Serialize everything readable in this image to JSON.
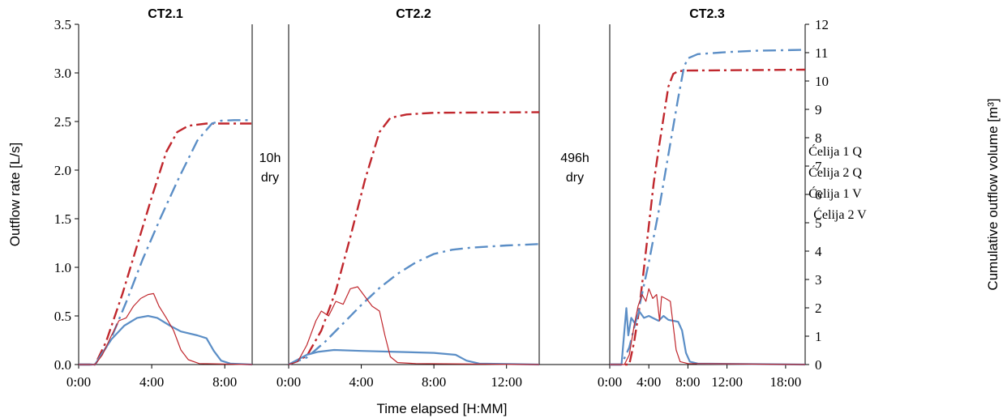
{
  "chart_data": {
    "type": "line",
    "xlabel": "Time elapsed [H:MM]",
    "ylabel": "Outflow rate [L/s]",
    "y2label": "Cumulative outflow volume [m³]",
    "ylim": [
      0,
      3.5
    ],
    "y2lim": [
      0,
      12
    ],
    "yticks": [
      "0.0",
      "0.5",
      "1.0",
      "1.5",
      "2.0",
      "2.5",
      "3.0",
      "3.5"
    ],
    "y2ticks": [
      "0",
      "1",
      "2",
      "3",
      "4",
      "5",
      "6",
      "7",
      "8",
      "9",
      "10",
      "11",
      "12"
    ],
    "grid": false,
    "legend_position": "right",
    "gaps": [
      {
        "line1": "10h",
        "line2": "dry"
      },
      {
        "line1": "496h",
        "line2": "dry"
      }
    ],
    "legend": [
      "Ćelija 1 Q",
      "Ćelija 2 Q",
      "Ćelija 1 V",
      "Ćelija 2 V"
    ],
    "colors": {
      "red": "#c0272d",
      "blue": "#5b8ec6"
    },
    "panels": [
      {
        "title": "CT2.1",
        "xmax": 9.5,
        "xticks": [
          {
            "v": 0,
            "label": "0:00"
          },
          {
            "v": 4,
            "label": "4:00"
          },
          {
            "v": 8,
            "label": "8:00"
          }
        ],
        "series": [
          {
            "key": "c1q",
            "axis": "y",
            "points": [
              [
                0,
                0
              ],
              [
                0.9,
                0
              ],
              [
                1.3,
                0.1
              ],
              [
                1.8,
                0.3
              ],
              [
                2.2,
                0.45
              ],
              [
                2.6,
                0.48
              ],
              [
                3.0,
                0.6
              ],
              [
                3.4,
                0.68
              ],
              [
                3.8,
                0.72
              ],
              [
                4.1,
                0.73
              ],
              [
                4.4,
                0.6
              ],
              [
                4.8,
                0.48
              ],
              [
                5.2,
                0.35
              ],
              [
                5.6,
                0.15
              ],
              [
                6.0,
                0.05
              ],
              [
                6.6,
                0.01
              ],
              [
                9.5,
                0
              ]
            ]
          },
          {
            "key": "c2q",
            "axis": "y",
            "points": [
              [
                0,
                0
              ],
              [
                0.9,
                0
              ],
              [
                1.3,
                0.12
              ],
              [
                1.8,
                0.26
              ],
              [
                2.5,
                0.4
              ],
              [
                3.2,
                0.48
              ],
              [
                3.8,
                0.5
              ],
              [
                4.3,
                0.48
              ],
              [
                5.0,
                0.4
              ],
              [
                5.6,
                0.34
              ],
              [
                6.5,
                0.3
              ],
              [
                7.0,
                0.27
              ],
              [
                7.4,
                0.14
              ],
              [
                7.8,
                0.04
              ],
              [
                8.3,
                0.01
              ],
              [
                9.5,
                0
              ]
            ]
          },
          {
            "key": "c1v",
            "axis": "y2",
            "points": [
              [
                0,
                0
              ],
              [
                0.9,
                0
              ],
              [
                1.5,
                0.8
              ],
              [
                2.4,
                2.5
              ],
              [
                3.2,
                4.2
              ],
              [
                4.0,
                5.9
              ],
              [
                4.8,
                7.5
              ],
              [
                5.4,
                8.2
              ],
              [
                6.0,
                8.42
              ],
              [
                7.0,
                8.5
              ],
              [
                9.5,
                8.5
              ]
            ]
          },
          {
            "key": "c2v",
            "axis": "y2",
            "points": [
              [
                0,
                0
              ],
              [
                0.9,
                0
              ],
              [
                1.7,
                0.8
              ],
              [
                2.6,
                2.2
              ],
              [
                3.5,
                3.7
              ],
              [
                4.5,
                5.2
              ],
              [
                5.5,
                6.6
              ],
              [
                6.5,
                7.9
              ],
              [
                7.3,
                8.5
              ],
              [
                7.8,
                8.6
              ],
              [
                8.5,
                8.62
              ],
              [
                9.5,
                8.62
              ]
            ]
          }
        ]
      },
      {
        "title": "CT2.2",
        "xmax": 13.8,
        "xticks": [
          {
            "v": 0,
            "label": "0:00"
          },
          {
            "v": 4,
            "label": "4:00"
          },
          {
            "v": 8,
            "label": "8:00"
          },
          {
            "v": 12,
            "label": "12:00"
          }
        ],
        "series": [
          {
            "key": "c1q",
            "axis": "y",
            "points": [
              [
                0,
                0
              ],
              [
                0.5,
                0.03
              ],
              [
                1.0,
                0.2
              ],
              [
                1.5,
                0.45
              ],
              [
                1.8,
                0.55
              ],
              [
                2.2,
                0.5
              ],
              [
                2.6,
                0.65
              ],
              [
                3.0,
                0.62
              ],
              [
                3.4,
                0.78
              ],
              [
                3.8,
                0.8
              ],
              [
                4.2,
                0.7
              ],
              [
                4.6,
                0.6
              ],
              [
                5.0,
                0.55
              ],
              [
                5.3,
                0.3
              ],
              [
                5.6,
                0.08
              ],
              [
                6.0,
                0.02
              ],
              [
                7.0,
                0.01
              ],
              [
                13.8,
                0
              ]
            ]
          },
          {
            "key": "c2q",
            "axis": "y",
            "points": [
              [
                0,
                0
              ],
              [
                0.5,
                0.05
              ],
              [
                1.0,
                0.1
              ],
              [
                1.6,
                0.13
              ],
              [
                2.5,
                0.15
              ],
              [
                4.0,
                0.14
              ],
              [
                6.0,
                0.13
              ],
              [
                8.0,
                0.12
              ],
              [
                9.2,
                0.1
              ],
              [
                9.8,
                0.04
              ],
              [
                10.5,
                0.01
              ],
              [
                13.8,
                0
              ]
            ]
          },
          {
            "key": "c1v",
            "axis": "y2",
            "points": [
              [
                0,
                0
              ],
              [
                1.0,
                0.3
              ],
              [
                1.8,
                1.2
              ],
              [
                2.6,
                2.6
              ],
              [
                3.4,
                4.5
              ],
              [
                4.2,
                6.5
              ],
              [
                5.0,
                8.2
              ],
              [
                5.6,
                8.7
              ],
              [
                6.5,
                8.82
              ],
              [
                8.0,
                8.88
              ],
              [
                13.8,
                8.9
              ]
            ]
          },
          {
            "key": "c2v",
            "axis": "y2",
            "points": [
              [
                0,
                0
              ],
              [
                1.0,
                0.25
              ],
              [
                2.0,
                0.8
              ],
              [
                3.0,
                1.45
              ],
              [
                4.0,
                2.1
              ],
              [
                5.0,
                2.7
              ],
              [
                6.0,
                3.2
              ],
              [
                7.0,
                3.6
              ],
              [
                8.0,
                3.9
              ],
              [
                9.0,
                4.05
              ],
              [
                10.0,
                4.12
              ],
              [
                11.0,
                4.16
              ],
              [
                12.0,
                4.2
              ],
              [
                13.8,
                4.25
              ]
            ]
          }
        ]
      },
      {
        "title": "CT2.3",
        "xmax": 20,
        "xticks": [
          {
            "v": 0,
            "label": "0:00"
          },
          {
            "v": 4,
            "label": "4:00"
          },
          {
            "v": 8,
            "label": "8:00"
          },
          {
            "v": 12,
            "label": "12:00"
          },
          {
            "v": 18,
            "label": "18:00"
          }
        ],
        "series": [
          {
            "key": "c1q",
            "axis": "y",
            "points": [
              [
                0,
                0
              ],
              [
                1.5,
                0
              ],
              [
                2.0,
                0.1
              ],
              [
                2.5,
                0.4
              ],
              [
                2.9,
                0.6
              ],
              [
                3.3,
                0.72
              ],
              [
                3.7,
                0.65
              ],
              [
                4.0,
                0.78
              ],
              [
                4.4,
                0.68
              ],
              [
                4.8,
                0.72
              ],
              [
                5.1,
                0.45
              ],
              [
                5.3,
                0.7
              ],
              [
                5.7,
                0.68
              ],
              [
                6.2,
                0.65
              ],
              [
                6.5,
                0.4
              ],
              [
                6.8,
                0.15
              ],
              [
                7.2,
                0.03
              ],
              [
                8.0,
                0.01
              ],
              [
                20,
                0
              ]
            ]
          },
          {
            "key": "c2q",
            "axis": "y",
            "points": [
              [
                0,
                0
              ],
              [
                1.2,
                0
              ],
              [
                1.5,
                0.35
              ],
              [
                1.7,
                0.58
              ],
              [
                1.9,
                0.3
              ],
              [
                2.2,
                0.48
              ],
              [
                2.6,
                0.42
              ],
              [
                3.0,
                0.55
              ],
              [
                3.5,
                0.48
              ],
              [
                4.0,
                0.5
              ],
              [
                4.6,
                0.47
              ],
              [
                5.0,
                0.45
              ],
              [
                5.5,
                0.5
              ],
              [
                6.0,
                0.46
              ],
              [
                6.5,
                0.45
              ],
              [
                7.0,
                0.44
              ],
              [
                7.4,
                0.35
              ],
              [
                7.8,
                0.12
              ],
              [
                8.2,
                0.03
              ],
              [
                9.0,
                0.01
              ],
              [
                20,
                0
              ]
            ]
          },
          {
            "key": "c1v",
            "axis": "y2",
            "points": [
              [
                0,
                0
              ],
              [
                2.0,
                0
              ],
              [
                2.5,
                0.8
              ],
              [
                3.0,
                1.9
              ],
              [
                3.5,
                3.4
              ],
              [
                4.0,
                4.9
              ],
              [
                4.5,
                6.4
              ],
              [
                5.0,
                7.6
              ],
              [
                5.5,
                8.7
              ],
              [
                6.0,
                9.8
              ],
              [
                6.5,
                10.25
              ],
              [
                7.0,
                10.35
              ],
              [
                8.0,
                10.37
              ],
              [
                20,
                10.4
              ]
            ]
          },
          {
            "key": "c2v",
            "axis": "y2",
            "points": [
              [
                0,
                0
              ],
              [
                1.2,
                0
              ],
              [
                2.0,
                0.6
              ],
              [
                3.0,
                2.0
              ],
              [
                4.0,
                3.6
              ],
              [
                5.0,
                5.4
              ],
              [
                6.0,
                7.4
              ],
              [
                7.0,
                9.4
              ],
              [
                7.6,
                10.5
              ],
              [
                8.0,
                10.8
              ],
              [
                9.0,
                10.95
              ],
              [
                12.0,
                11.02
              ],
              [
                15.0,
                11.07
              ],
              [
                20,
                11.1
              ]
            ]
          }
        ]
      }
    ]
  }
}
